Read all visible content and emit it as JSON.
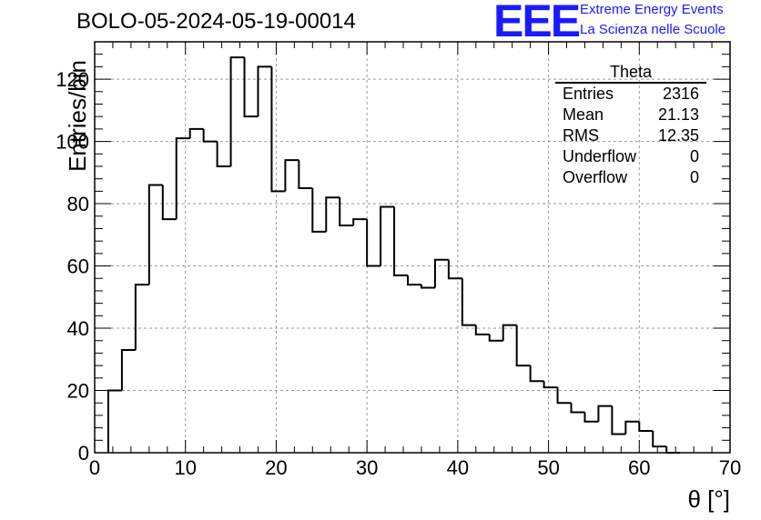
{
  "header": {
    "run_title": "BOLO-05-2024-05-19-00014",
    "logo_text": "EEE",
    "logo_line1": "Extreme Energy Events",
    "logo_line2": "La Scienza nelle Scuole"
  },
  "stats": {
    "title": "Theta",
    "rows": [
      {
        "label": "Entries",
        "value": "2316"
      },
      {
        "label": "Mean",
        "value": "21.13"
      },
      {
        "label": "RMS",
        "value": "12.35"
      },
      {
        "label": "Underflow",
        "value": "0"
      },
      {
        "label": "Overflow",
        "value": "0"
      }
    ]
  },
  "colors": {
    "logo": "#1a1aff",
    "line": "#000000",
    "grid": "#9a9a9a"
  },
  "chart_data": {
    "type": "bar",
    "histogram": true,
    "xlabel": "θ [°]",
    "ylabel": "Entries/bin",
    "xlim": [
      0,
      70
    ],
    "ylim": [
      0,
      132
    ],
    "grid": true,
    "bin_width": 1.5,
    "x_start": 1.5,
    "values": [
      20,
      33,
      54,
      86,
      75,
      101,
      104,
      100,
      92,
      127,
      108,
      124,
      84,
      94,
      85,
      71,
      82,
      73,
      75,
      60,
      79,
      57,
      54,
      53,
      62,
      56,
      41,
      38,
      36,
      41,
      28,
      23,
      21,
      16,
      13,
      10,
      15,
      6,
      10,
      7,
      2,
      0
    ],
    "xticks": [
      0,
      10,
      20,
      30,
      40,
      50,
      60,
      70
    ],
    "yticks": [
      0,
      20,
      40,
      60,
      80,
      100,
      120
    ]
  }
}
